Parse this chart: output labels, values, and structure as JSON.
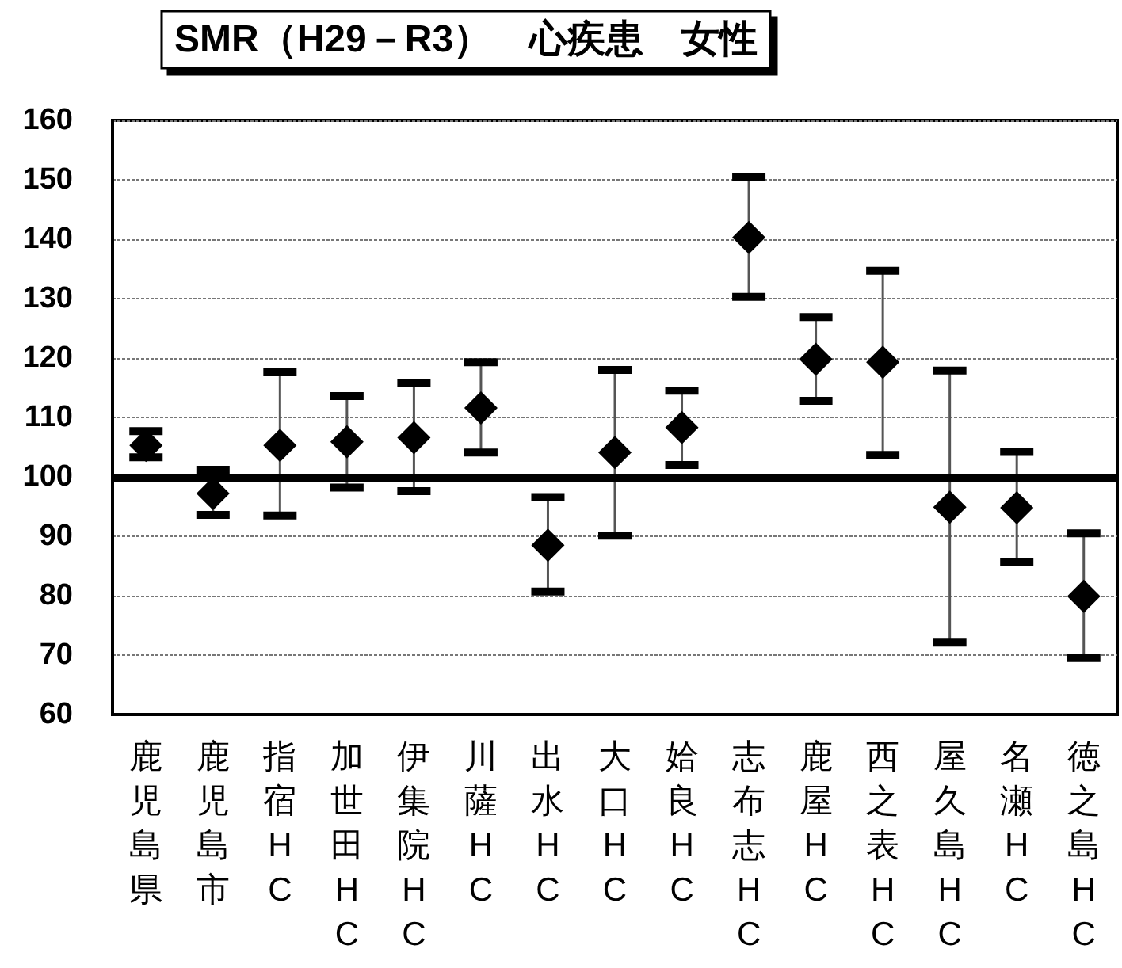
{
  "chart_data": {
    "type": "scatter",
    "title": "SMR（H29－R3）　心疾患　女性",
    "categories": [
      "鹿児島県",
      "鹿児島市",
      "指宿HC",
      "加世田HC",
      "伊集院HC",
      "川薩HC",
      "出水HC",
      "大口HC",
      "姶良HC",
      "志布志HC",
      "鹿屋HC",
      "西之表HC",
      "屋久島HC",
      "名瀬HC",
      "徳之島HC"
    ],
    "values": [
      105.3,
      97.2,
      105.3,
      105.9,
      106.6,
      111.6,
      88.5,
      104.1,
      108.3,
      140.3,
      119.8,
      119.3,
      94.9,
      94.8,
      79.9
    ],
    "errors": [
      [
        103.3,
        107.7
      ],
      [
        93.6,
        101.2
      ],
      [
        93.5,
        117.6
      ],
      [
        98.2,
        113.6
      ],
      [
        97.6,
        115.8
      ],
      [
        104.1,
        119.3
      ],
      [
        80.7,
        96.6
      ],
      [
        90.1,
        118.0
      ],
      [
        102.0,
        114.5
      ],
      [
        130.3,
        150.4
      ],
      [
        112.8,
        126.9
      ],
      [
        103.7,
        134.7
      ],
      [
        72.1,
        117.9
      ],
      [
        85.7,
        104.2
      ],
      [
        69.5,
        90.5
      ]
    ],
    "color": "#000000",
    "marker": "diamond",
    "ylim": [
      60,
      160
    ],
    "yticks": [
      60,
      70,
      80,
      90,
      100,
      110,
      120,
      130,
      140,
      150,
      160
    ],
    "grid": "y",
    "ref_lines": [
      {
        "axis": "y",
        "value": 100,
        "color": "#000000"
      }
    ]
  }
}
